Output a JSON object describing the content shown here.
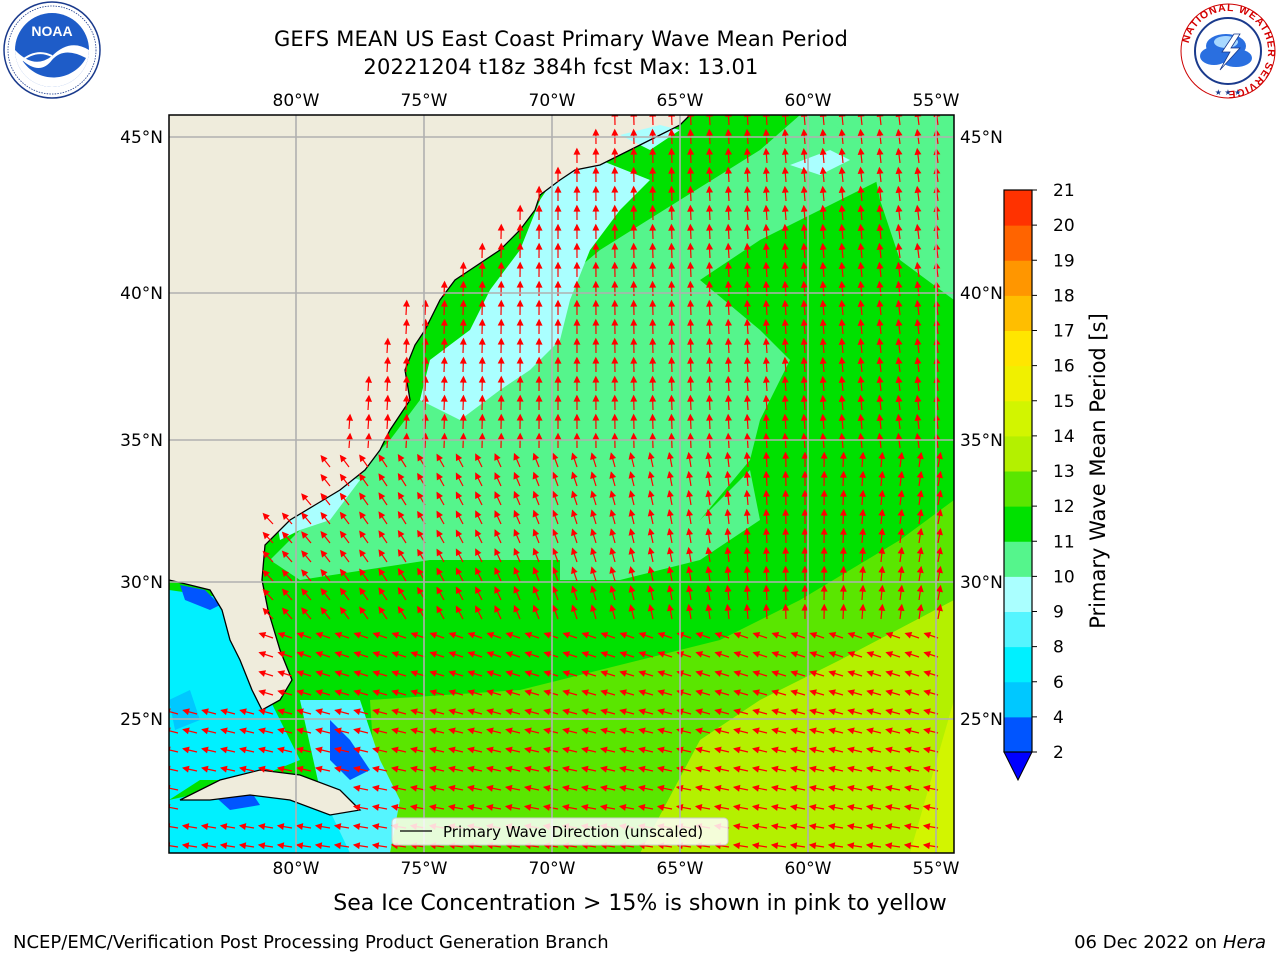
{
  "header": {
    "title_line1": "GEFS MEAN US East Coast Primary Wave Mean Period",
    "title_line2": "20221204 t18z 384h fcst   Max: 13.01"
  },
  "logos": {
    "left": "NOAA",
    "right_ring": "NATIONAL WEATHER SERVICE"
  },
  "map": {
    "lon_labels": [
      "80°W",
      "75°W",
      "70°W",
      "65°W",
      "60°W",
      "55°W"
    ],
    "lat_labels": [
      "45°N",
      "40°N",
      "35°N",
      "30°N",
      "25°N"
    ],
    "legend_label": "Primary Wave Direction (unscaled)"
  },
  "colorbar": {
    "label": "Primary Wave Mean Period [s]",
    "ticks": [
      "2",
      "4",
      "6",
      "8",
      "9",
      "10",
      "11",
      "12",
      "13",
      "14",
      "15",
      "16",
      "17",
      "18",
      "19",
      "20",
      "21"
    ],
    "colors": [
      "#0055ff",
      "#00c8ff",
      "#00f0ff",
      "#55f5ff",
      "#aaffff",
      "#55f58c",
      "#00e100",
      "#5ae600",
      "#b4f000",
      "#d2f500",
      "#f0f000",
      "#ffe600",
      "#ffbe00",
      "#ff9600",
      "#ff6400",
      "#ff3200"
    ],
    "extend_color": "#0000ff"
  },
  "footer": {
    "subtitle": "Sea Ice Concentration > 15% is shown in pink to yellow",
    "left": "NCEP/EMC/Verification Post Processing Product Generation Branch",
    "right_date": "06 Dec 2022 on",
    "right_host": "Hera"
  }
}
